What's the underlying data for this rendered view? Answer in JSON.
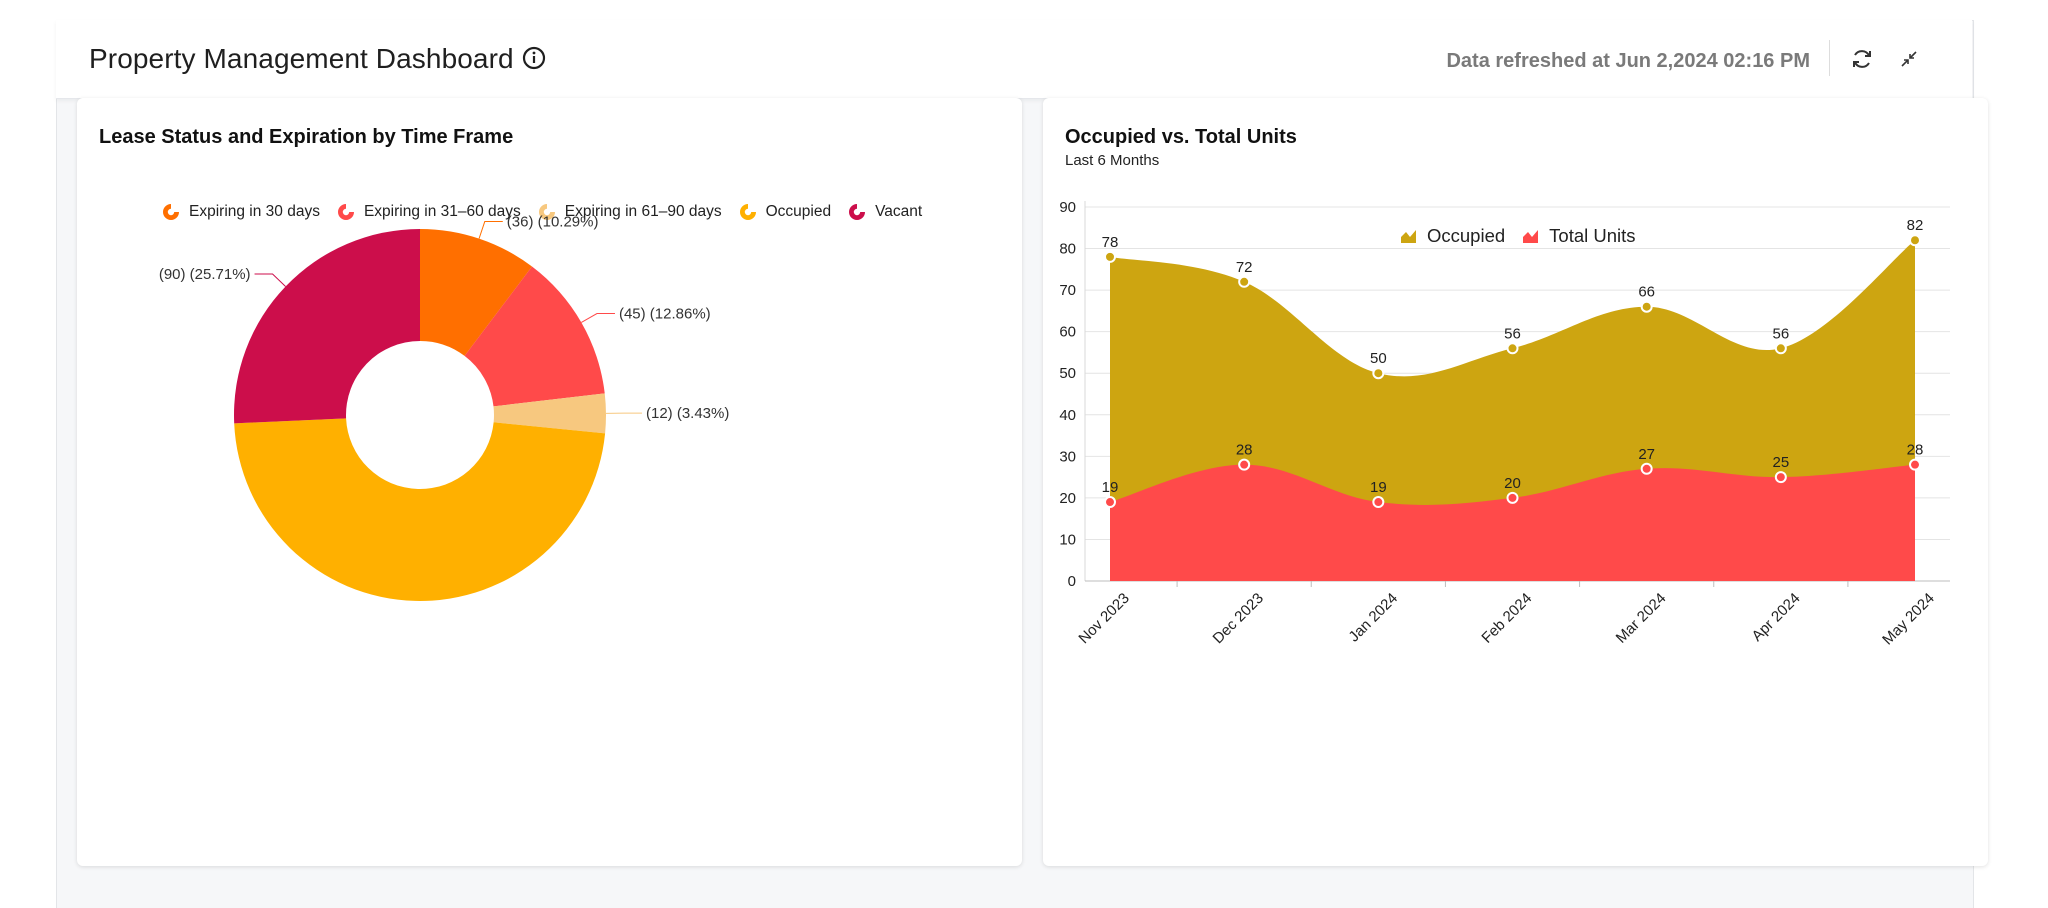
{
  "header": {
    "title": "Property Management Dashboard",
    "refreshed_text": "Data refreshed at Jun 2,2024 02:16 PM",
    "icons": {
      "info": "info-icon",
      "refresh": "refresh-icon",
      "collapse": "collapse-icon"
    }
  },
  "colors": {
    "expiring30": "#ff6f00",
    "expiring31_60": "#ff4a4a",
    "expiring61_90": "#f7c87f",
    "occupied": "#ffb000",
    "vacant": "#cc0e4b",
    "occupied_area": "#cda511",
    "total_units_area": "#ff4a4a"
  },
  "chart_data": [
    {
      "type": "pie",
      "variant": "donut",
      "title": "Lease Status and Expiration by Time Frame",
      "legend_position": "top",
      "slices": [
        {
          "name": "Expiring in 30 days",
          "value": 36,
          "label": "(36) (10.29%)",
          "color_key": "expiring30"
        },
        {
          "name": "Expiring in 31–60 days",
          "value": 45,
          "label": "(45) (12.86%)",
          "color_key": "expiring31_60"
        },
        {
          "name": "Expiring in 61–90 days",
          "value": 12,
          "label": "(12) (3.43%)",
          "color_key": "expiring61_90"
        },
        {
          "name": "Occupied",
          "value": 167,
          "label": "",
          "color_key": "occupied"
        },
        {
          "name": "Vacant",
          "value": 90,
          "label": "(90) (25.71%)",
          "color_key": "vacant"
        }
      ]
    },
    {
      "type": "area",
      "title": "Occupied vs. Total Units",
      "subtitle": "Last 6 Months",
      "legend_position": "top",
      "categories": [
        "Nov 2023",
        "Dec 2023",
        "Jan 2024",
        "Feb 2024",
        "Mar 2024",
        "Apr 2024",
        "May 2024"
      ],
      "series": [
        {
          "name": "Occupied",
          "values": [
            78,
            72,
            50,
            56,
            66,
            56,
            82
          ],
          "color_key": "occupied_area"
        },
        {
          "name": "Total Units",
          "values": [
            19,
            28,
            19,
            20,
            27,
            25,
            28
          ],
          "color_key": "total_units_area"
        }
      ],
      "yticks": [
        0,
        10,
        20,
        30,
        40,
        50,
        60,
        70,
        80,
        90
      ],
      "ylim": [
        0,
        90
      ],
      "grid": true,
      "xlabel": "",
      "ylabel": ""
    }
  ]
}
